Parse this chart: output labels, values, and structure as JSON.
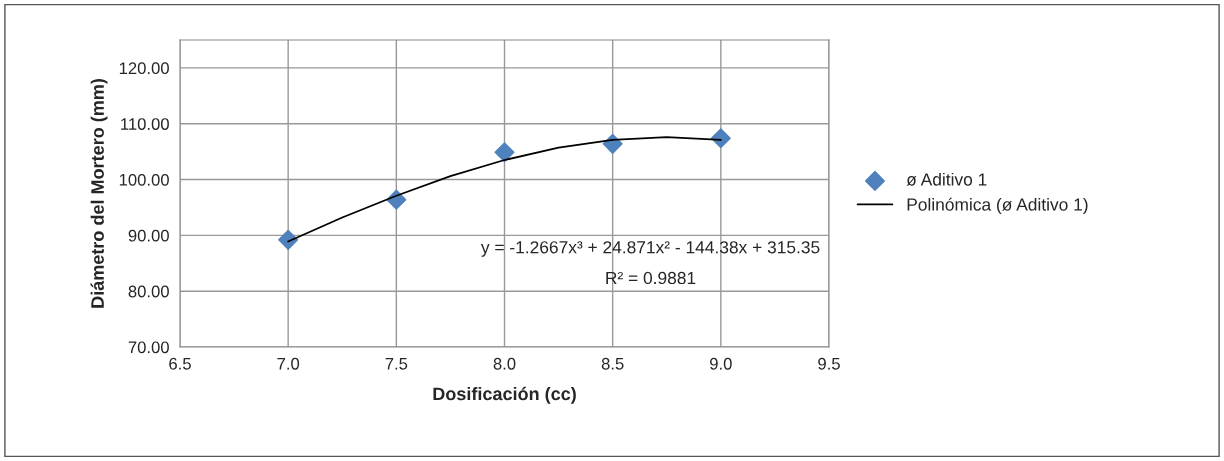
{
  "chart_data": {
    "type": "scatter",
    "xlabel": "Dosificación (cc)",
    "ylabel": "Diámetro del Mortero (mm)",
    "xlim": [
      6.5,
      9.5
    ],
    "xticks": [
      {
        "value": 6.5,
        "label": "6.5"
      },
      {
        "value": 7.0,
        "label": "7.0"
      },
      {
        "value": 7.5,
        "label": "7.5"
      },
      {
        "value": 8.0,
        "label": "8.0"
      },
      {
        "value": 8.5,
        "label": "8.5"
      },
      {
        "value": 9.0,
        "label": "9.0"
      },
      {
        "value": 9.5,
        "label": "9.5"
      }
    ],
    "ylim": [
      70,
      125
    ],
    "yticks": [
      {
        "value": 70,
        "label": "70.00"
      },
      {
        "value": 80,
        "label": "80.00"
      },
      {
        "value": 90,
        "label": "90.00"
      },
      {
        "value": 100,
        "label": "100.00"
      },
      {
        "value": 110,
        "label": "110.00"
      },
      {
        "value": 120,
        "label": "120.00"
      }
    ],
    "grid": true,
    "legend": "right",
    "series": [
      {
        "name": "ø Aditivo 1",
        "marker": "diamond",
        "color": "#4f81bd",
        "x": [
          7.0,
          7.5,
          8.0,
          8.5,
          9.0
        ],
        "values": [
          89.2,
          96.4,
          104.9,
          106.4,
          107.4
        ]
      },
      {
        "name": "Polinómica (ø Aditivo 1)",
        "type": "line",
        "color": "#000000",
        "x": [
          7.0,
          7.25,
          7.5,
          7.75,
          8.0,
          8.25,
          8.5,
          8.75,
          9.0
        ],
        "values": [
          88.9,
          93.2,
          97.1,
          100.6,
          103.5,
          105.7,
          107.1,
          107.6,
          107.1
        ]
      }
    ],
    "annotations": [
      "y = -1.2667x³ + 24.871x² - 144.38x + 315.35",
      "R² = 0.9881"
    ]
  }
}
